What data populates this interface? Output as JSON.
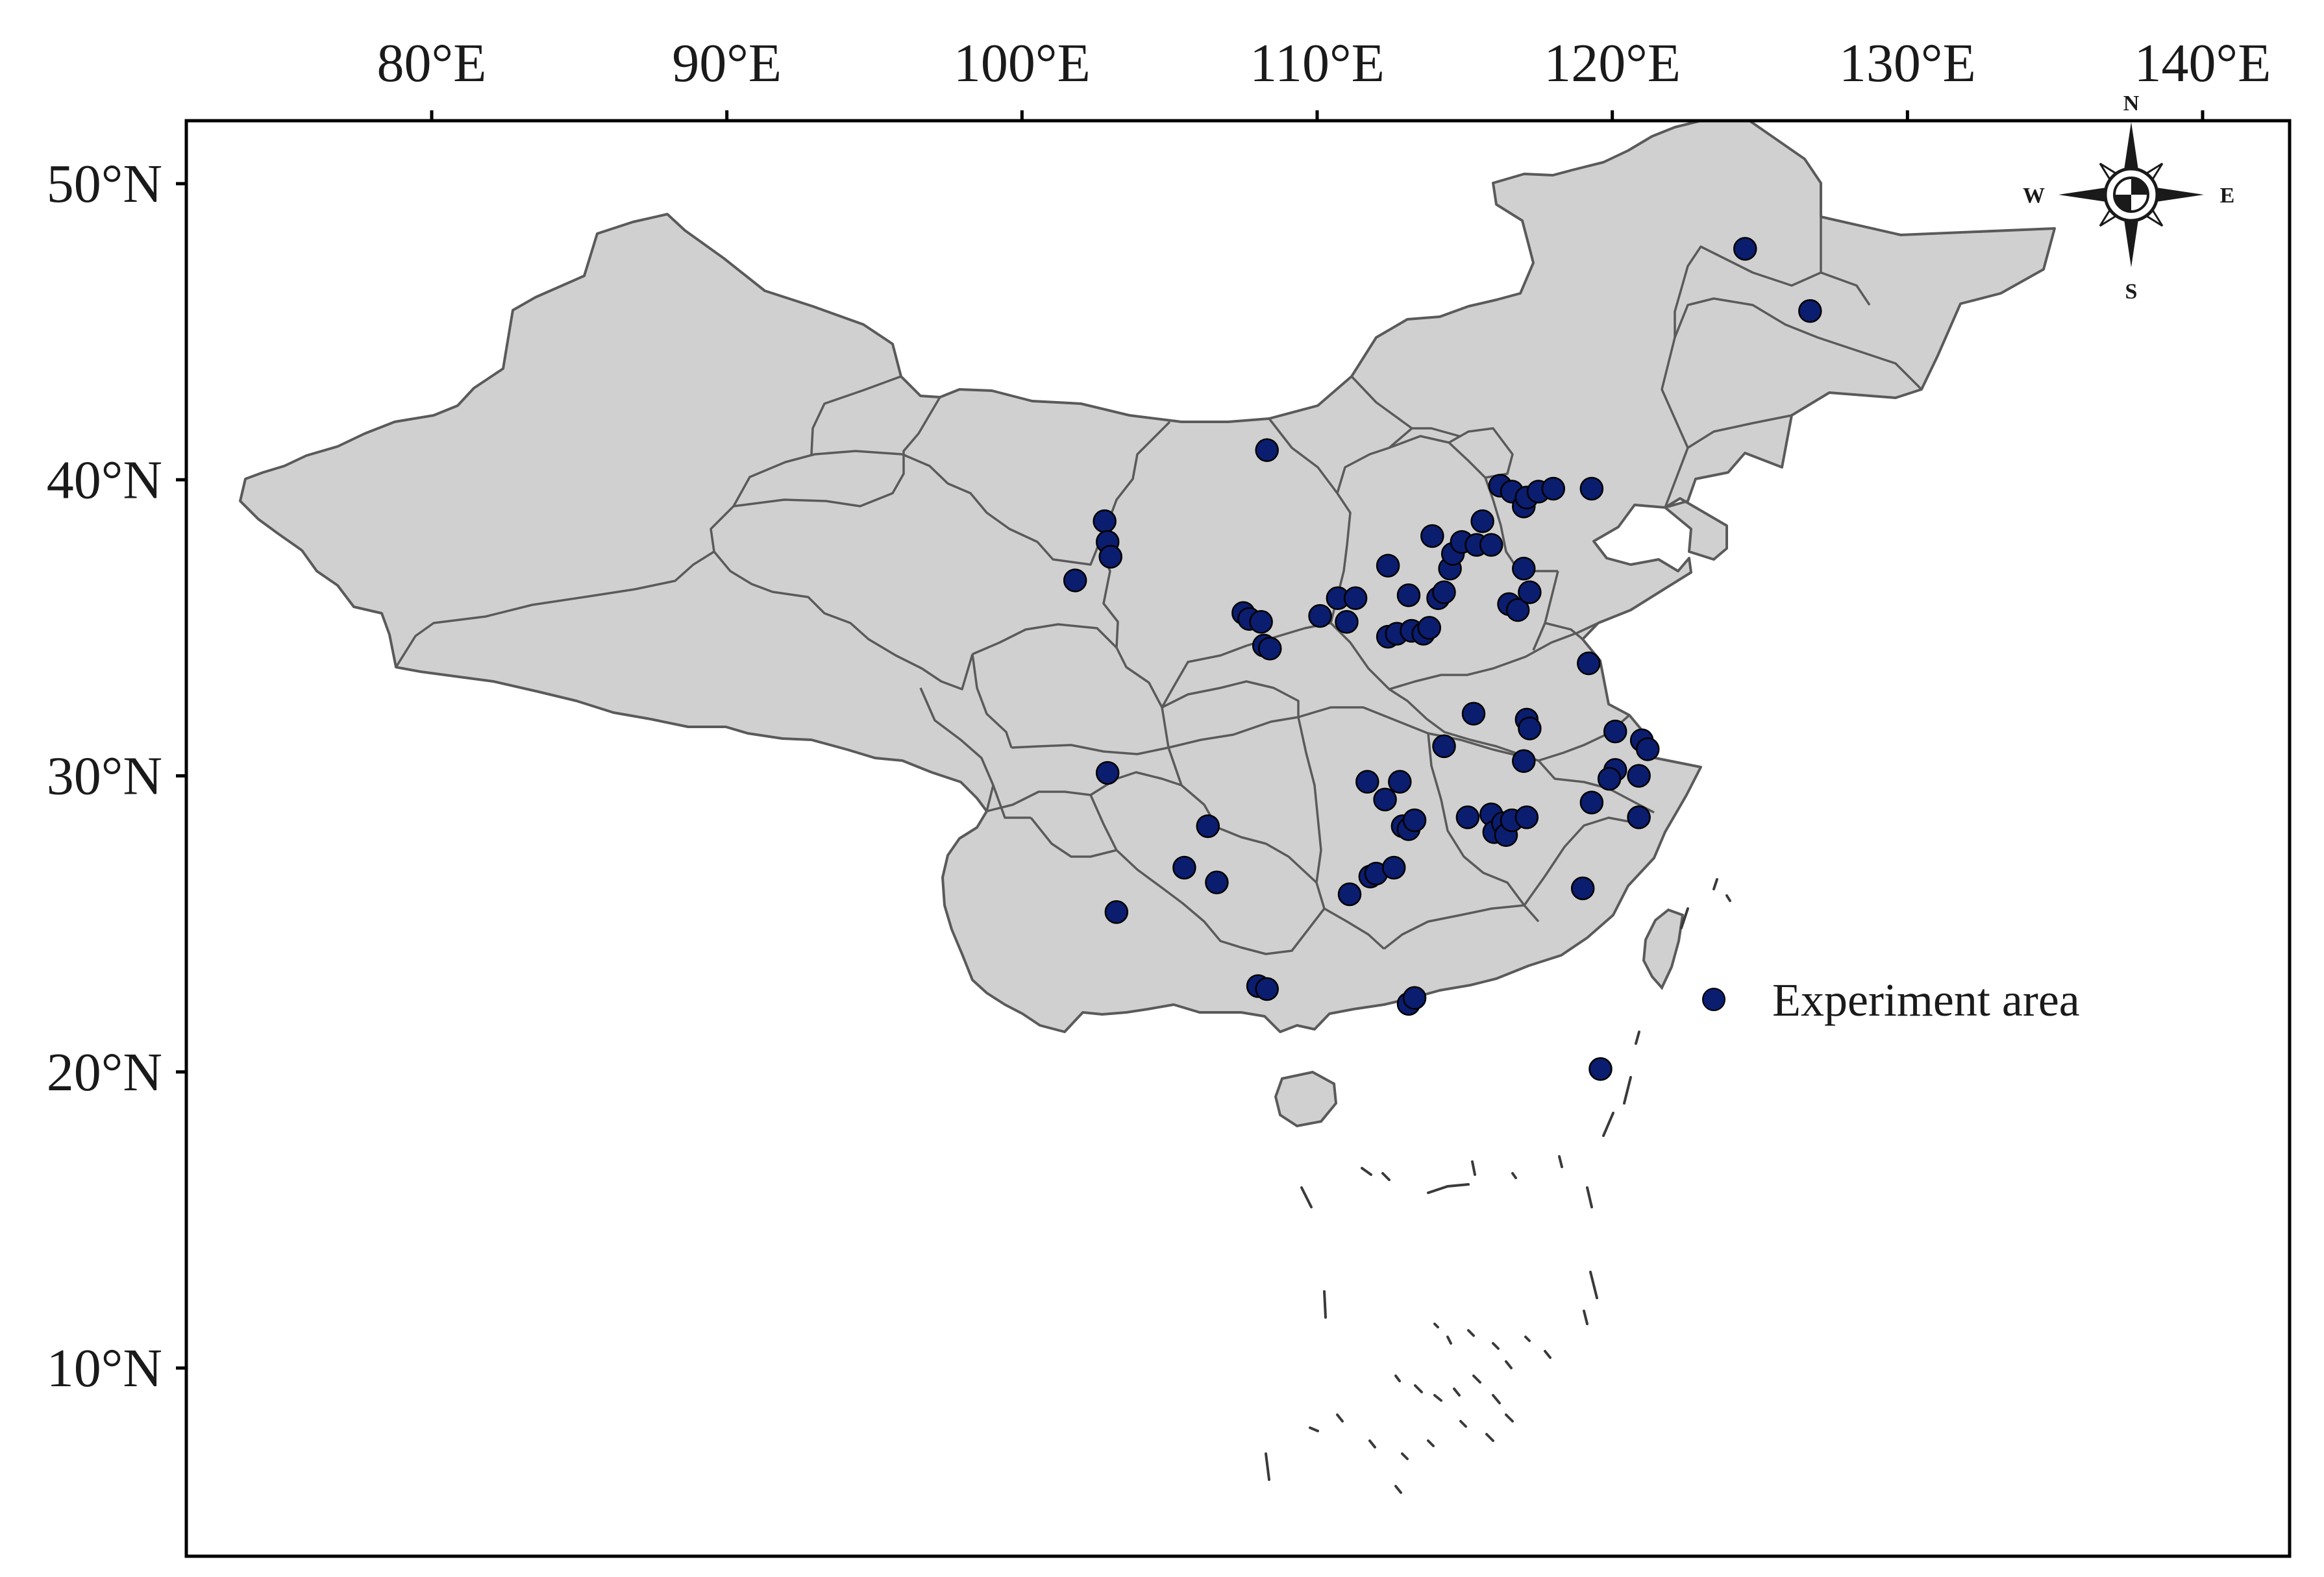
{
  "map": {
    "x_axis": {
      "unit": "degrees_east",
      "ticks": [
        {
          "value": 80,
          "label": "80°E"
        },
        {
          "value": 90,
          "label": "90°E"
        },
        {
          "value": 100,
          "label": "100°E"
        },
        {
          "value": 110,
          "label": "110°E"
        },
        {
          "value": 120,
          "label": "120°E"
        },
        {
          "value": 130,
          "label": "130°E"
        },
        {
          "value": 140,
          "label": "140°E"
        }
      ],
      "range": [
        73,
        143
      ]
    },
    "y_axis": {
      "unit": "degrees_north",
      "ticks": [
        {
          "value": 50,
          "label": "50°N"
        },
        {
          "value": 40,
          "label": "40°N"
        },
        {
          "value": 30,
          "label": "30°N"
        },
        {
          "value": 20,
          "label": "20°N"
        },
        {
          "value": 10,
          "label": "10°N"
        }
      ],
      "range": [
        3.5,
        52
      ]
    },
    "legend": {
      "label": "Experiment area",
      "placement": "right-center"
    },
    "compass": {
      "n": "N",
      "s": "S",
      "e": "E",
      "w": "W",
      "placement": "top-right"
    },
    "colors": {
      "land_fill": "#d0d0d0",
      "border": "#5a5a5a",
      "point_fill": "#0b1d6e",
      "point_stroke": "#000000",
      "frame": "#000000"
    },
    "points": [
      [
        124.5,
        47.8
      ],
      [
        126.7,
        45.7
      ],
      [
        108.3,
        41.0
      ],
      [
        102.8,
        38.6
      ],
      [
        102.9,
        37.9
      ],
      [
        103.0,
        37.4
      ],
      [
        101.8,
        36.6
      ],
      [
        107.5,
        35.5
      ],
      [
        107.7,
        35.3
      ],
      [
        108.1,
        35.2
      ],
      [
        108.2,
        34.4
      ],
      [
        108.4,
        34.3
      ],
      [
        110.1,
        35.4
      ],
      [
        110.7,
        36.0
      ],
      [
        111.0,
        35.2
      ],
      [
        111.3,
        36.0
      ],
      [
        112.4,
        37.1
      ],
      [
        112.4,
        34.7
      ],
      [
        112.7,
        34.8
      ],
      [
        113.1,
        36.1
      ],
      [
        113.2,
        34.9
      ],
      [
        113.6,
        34.8
      ],
      [
        113.8,
        35.0
      ],
      [
        113.9,
        38.1
      ],
      [
        114.1,
        36.0
      ],
      [
        114.3,
        36.2
      ],
      [
        114.5,
        37.0
      ],
      [
        114.6,
        37.5
      ],
      [
        114.9,
        37.9
      ],
      [
        115.4,
        37.8
      ],
      [
        115.6,
        38.6
      ],
      [
        115.9,
        37.8
      ],
      [
        116.2,
        39.8
      ],
      [
        116.6,
        39.6
      ],
      [
        117.0,
        39.1
      ],
      [
        117.1,
        39.4
      ],
      [
        117.5,
        39.6
      ],
      [
        118.0,
        39.7
      ],
      [
        119.3,
        39.7
      ],
      [
        116.5,
        35.8
      ],
      [
        116.8,
        35.6
      ],
      [
        117.0,
        37.0
      ],
      [
        117.2,
        36.2
      ],
      [
        119.2,
        33.8
      ],
      [
        115.3,
        32.1
      ],
      [
        114.3,
        31.0
      ],
      [
        117.1,
        31.9
      ],
      [
        117.2,
        31.6
      ],
      [
        117.0,
        30.5
      ],
      [
        120.1,
        31.5
      ],
      [
        121.0,
        31.2
      ],
      [
        121.2,
        30.9
      ],
      [
        120.1,
        30.2
      ],
      [
        119.9,
        29.9
      ],
      [
        120.9,
        30.0
      ],
      [
        119.3,
        29.1
      ],
      [
        120.9,
        28.6
      ],
      [
        111.7,
        29.8
      ],
      [
        112.3,
        29.2
      ],
      [
        112.8,
        29.8
      ],
      [
        112.9,
        28.3
      ],
      [
        113.1,
        28.2
      ],
      [
        113.3,
        28.5
      ],
      [
        111.1,
        26.0
      ],
      [
        111.8,
        26.6
      ],
      [
        112.0,
        26.7
      ],
      [
        112.6,
        26.9
      ],
      [
        115.1,
        28.6
      ],
      [
        115.9,
        28.7
      ],
      [
        116.0,
        28.1
      ],
      [
        116.3,
        28.4
      ],
      [
        116.4,
        28.0
      ],
      [
        116.6,
        28.5
      ],
      [
        117.1,
        28.6
      ],
      [
        119.0,
        26.2
      ],
      [
        119.6,
        20.1
      ],
      [
        102.9,
        30.1
      ],
      [
        103.2,
        25.4
      ],
      [
        106.3,
        28.3
      ],
      [
        105.5,
        26.9
      ],
      [
        106.6,
        26.4
      ],
      [
        108.0,
        22.9
      ],
      [
        108.3,
        22.8
      ],
      [
        113.1,
        22.3
      ],
      [
        113.3,
        22.5
      ]
    ]
  }
}
